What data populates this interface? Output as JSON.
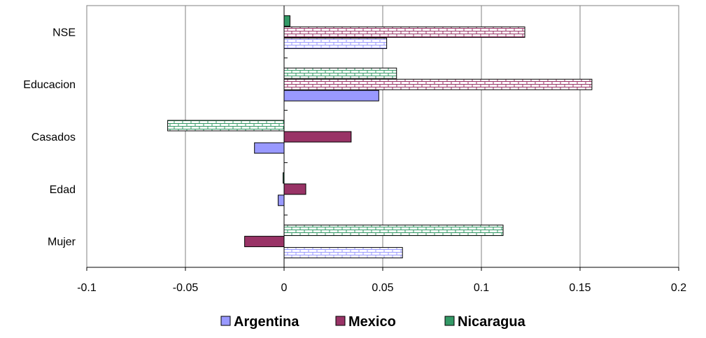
{
  "chart_data": {
    "type": "bar",
    "orientation": "horizontal",
    "categories": [
      "NSE",
      "Educacion",
      "Casados",
      "Edad",
      "Mujer"
    ],
    "series": [
      {
        "name": "Argentina",
        "values": [
          0.052,
          0.048,
          -0.015,
          -0.003,
          0.06
        ],
        "color": "#9999ff",
        "pattern": "brick-light",
        "pattern_on": [
          true,
          false,
          false,
          false,
          true
        ]
      },
      {
        "name": "Mexico",
        "values": [
          0.122,
          0.156,
          0.034,
          0.011,
          -0.02
        ],
        "color": "#993366",
        "pattern": "brick-pink",
        "pattern_on": [
          true,
          true,
          false,
          false,
          false
        ]
      },
      {
        "name": "Nicaragua",
        "values": [
          0.003,
          0.057,
          -0.059,
          -0.0005,
          0.111
        ],
        "color": "#339966",
        "pattern": "brick-green",
        "pattern_on": [
          false,
          true,
          true,
          false,
          true
        ]
      }
    ],
    "xlim": [
      -0.1,
      0.2
    ],
    "xticks": [
      "-0.1",
      "-0.05",
      "0",
      "0.05",
      "0.1",
      "0.15",
      "0.2"
    ],
    "grid": "vertical",
    "legend_position": "bottom"
  }
}
